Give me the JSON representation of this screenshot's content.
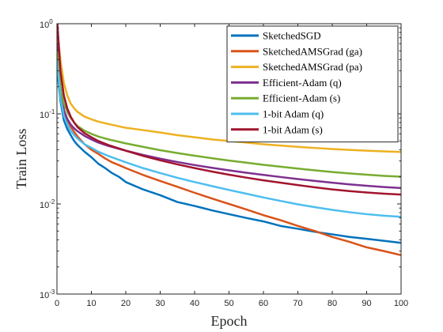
{
  "chart_data": {
    "type": "line",
    "xlabel": "Epoch",
    "ylabel": "Train Loss",
    "xlim": [
      0,
      100
    ],
    "ylim": [
      0.001,
      1
    ],
    "yscale": "log",
    "xticks": [
      0,
      10,
      20,
      30,
      40,
      50,
      60,
      70,
      80,
      90,
      100
    ],
    "yticks": [
      {
        "value": 0.001,
        "base": "10",
        "exp": "-3"
      },
      {
        "value": 0.01,
        "base": "10",
        "exp": "-2"
      },
      {
        "value": 0.1,
        "base": "10",
        "exp": "-1"
      },
      {
        "value": 1,
        "base": "10",
        "exp": "0"
      }
    ],
    "grid": false,
    "legend": "top-right",
    "series": [
      {
        "name": "SketchedSGD",
        "color": "#0072BD",
        "points": [
          [
            0,
            0.33
          ],
          [
            1,
            0.14
          ],
          [
            2,
            0.085
          ],
          [
            3,
            0.068
          ],
          [
            4,
            0.058
          ],
          [
            5,
            0.05
          ],
          [
            6,
            0.045
          ],
          [
            8,
            0.038
          ],
          [
            10,
            0.033
          ],
          [
            12,
            0.028
          ],
          [
            14,
            0.025
          ],
          [
            16,
            0.022
          ],
          [
            18,
            0.02
          ],
          [
            20,
            0.0175
          ],
          [
            25,
            0.0145
          ],
          [
            30,
            0.0125
          ],
          [
            35,
            0.0105
          ],
          [
            40,
            0.0095
          ],
          [
            45,
            0.0085
          ],
          [
            50,
            0.0077
          ],
          [
            55,
            0.007
          ],
          [
            60,
            0.0064
          ],
          [
            65,
            0.0057
          ],
          [
            70,
            0.0053
          ],
          [
            75,
            0.0049
          ],
          [
            80,
            0.0046
          ],
          [
            85,
            0.0043
          ],
          [
            90,
            0.0041
          ],
          [
            95,
            0.0039
          ],
          [
            100,
            0.0037
          ]
        ]
      },
      {
        "name": "SketchedAMSGrad (ga)",
        "color": "#D95319",
        "points": [
          [
            0,
            0.8
          ],
          [
            1,
            0.2
          ],
          [
            2,
            0.11
          ],
          [
            3,
            0.085
          ],
          [
            4,
            0.072
          ],
          [
            5,
            0.063
          ],
          [
            6,
            0.056
          ],
          [
            8,
            0.046
          ],
          [
            10,
            0.04
          ],
          [
            12,
            0.036
          ],
          [
            14,
            0.032
          ],
          [
            16,
            0.029
          ],
          [
            18,
            0.027
          ],
          [
            20,
            0.025
          ],
          [
            25,
            0.021
          ],
          [
            30,
            0.018
          ],
          [
            35,
            0.0155
          ],
          [
            40,
            0.0133
          ],
          [
            45,
            0.0115
          ],
          [
            50,
            0.01
          ],
          [
            55,
            0.0087
          ],
          [
            60,
            0.0075
          ],
          [
            65,
            0.0066
          ],
          [
            70,
            0.0057
          ],
          [
            75,
            0.005
          ],
          [
            80,
            0.0043
          ],
          [
            85,
            0.0038
          ],
          [
            90,
            0.0033
          ],
          [
            95,
            0.003
          ],
          [
            100,
            0.0027
          ]
        ]
      },
      {
        "name": "SketchedAMSGrad (pa)",
        "color": "#EDB120",
        "points": [
          [
            0,
            0.9
          ],
          [
            1,
            0.4
          ],
          [
            2,
            0.22
          ],
          [
            3,
            0.16
          ],
          [
            4,
            0.13
          ],
          [
            5,
            0.115
          ],
          [
            6,
            0.105
          ],
          [
            8,
            0.093
          ],
          [
            10,
            0.087
          ],
          [
            12,
            0.082
          ],
          [
            15,
            0.077
          ],
          [
            20,
            0.07
          ],
          [
            25,
            0.066
          ],
          [
            30,
            0.062
          ],
          [
            35,
            0.058
          ],
          [
            40,
            0.055
          ],
          [
            45,
            0.052
          ],
          [
            50,
            0.05
          ],
          [
            55,
            0.048
          ],
          [
            60,
            0.046
          ],
          [
            65,
            0.0445
          ],
          [
            70,
            0.043
          ],
          [
            75,
            0.0418
          ],
          [
            80,
            0.0407
          ],
          [
            85,
            0.0398
          ],
          [
            90,
            0.039
          ],
          [
            95,
            0.0383
          ],
          [
            100,
            0.0377
          ]
        ]
      },
      {
        "name": "Efficient-Adam (q)",
        "color": "#7E2F8E",
        "points": [
          [
            0,
            0.6
          ],
          [
            1,
            0.18
          ],
          [
            2,
            0.11
          ],
          [
            3,
            0.088
          ],
          [
            4,
            0.076
          ],
          [
            5,
            0.069
          ],
          [
            6,
            0.064
          ],
          [
            8,
            0.057
          ],
          [
            10,
            0.052
          ],
          [
            12,
            0.048
          ],
          [
            15,
            0.044
          ],
          [
            20,
            0.039
          ],
          [
            25,
            0.035
          ],
          [
            30,
            0.0318
          ],
          [
            35,
            0.0292
          ],
          [
            40,
            0.027
          ],
          [
            45,
            0.0252
          ],
          [
            50,
            0.0236
          ],
          [
            55,
            0.0222
          ],
          [
            60,
            0.021
          ],
          [
            65,
            0.0199
          ],
          [
            70,
            0.0189
          ],
          [
            75,
            0.018
          ],
          [
            80,
            0.0172
          ],
          [
            85,
            0.0165
          ],
          [
            90,
            0.0159
          ],
          [
            95,
            0.0154
          ],
          [
            100,
            0.015
          ]
        ]
      },
      {
        "name": "Efficient-Adam (s)",
        "color": "#77AC30",
        "points": [
          [
            0,
            0.5
          ],
          [
            1,
            0.2
          ],
          [
            2,
            0.13
          ],
          [
            3,
            0.105
          ],
          [
            4,
            0.09
          ],
          [
            5,
            0.08
          ],
          [
            6,
            0.073
          ],
          [
            8,
            0.065
          ],
          [
            10,
            0.06
          ],
          [
            12,
            0.056
          ],
          [
            15,
            0.052
          ],
          [
            20,
            0.047
          ],
          [
            25,
            0.043
          ],
          [
            30,
            0.0395
          ],
          [
            35,
            0.0367
          ],
          [
            40,
            0.0343
          ],
          [
            45,
            0.0322
          ],
          [
            50,
            0.0303
          ],
          [
            55,
            0.0287
          ],
          [
            60,
            0.0272
          ],
          [
            65,
            0.0259
          ],
          [
            70,
            0.0247
          ],
          [
            75,
            0.0236
          ],
          [
            80,
            0.0226
          ],
          [
            85,
            0.0218
          ],
          [
            90,
            0.0211
          ],
          [
            95,
            0.0205
          ],
          [
            100,
            0.0201
          ]
        ]
      },
      {
        "name": "1-bit Adam (q)",
        "color": "#4DBEEE",
        "points": [
          [
            0,
            0.4
          ],
          [
            1,
            0.15
          ],
          [
            2,
            0.095
          ],
          [
            3,
            0.076
          ],
          [
            4,
            0.065
          ],
          [
            5,
            0.058
          ],
          [
            6,
            0.053
          ],
          [
            8,
            0.046
          ],
          [
            10,
            0.042
          ],
          [
            12,
            0.038
          ],
          [
            15,
            0.034
          ],
          [
            20,
            0.029
          ],
          [
            25,
            0.025
          ],
          [
            30,
            0.022
          ],
          [
            35,
            0.0195
          ],
          [
            40,
            0.0175
          ],
          [
            45,
            0.0158
          ],
          [
            50,
            0.0143
          ],
          [
            55,
            0.013
          ],
          [
            60,
            0.0118
          ],
          [
            65,
            0.0108
          ],
          [
            70,
            0.0099
          ],
          [
            75,
            0.0092
          ],
          [
            80,
            0.0086
          ],
          [
            85,
            0.0081
          ],
          [
            90,
            0.0077
          ],
          [
            95,
            0.0074
          ],
          [
            100,
            0.0072
          ]
        ]
      },
      {
        "name": "1-bit Adam (s)",
        "color": "#A2142F",
        "points": [
          [
            0,
            1.2
          ],
          [
            1,
            0.3
          ],
          [
            2,
            0.16
          ],
          [
            3,
            0.115
          ],
          [
            4,
            0.093
          ],
          [
            5,
            0.08
          ],
          [
            6,
            0.071
          ],
          [
            8,
            0.061
          ],
          [
            10,
            0.055
          ],
          [
            12,
            0.05
          ],
          [
            15,
            0.045
          ],
          [
            20,
            0.039
          ],
          [
            25,
            0.0342
          ],
          [
            30,
            0.0305
          ],
          [
            35,
            0.0275
          ],
          [
            40,
            0.025
          ],
          [
            45,
            0.0229
          ],
          [
            50,
            0.0211
          ],
          [
            55,
            0.0196
          ],
          [
            60,
            0.0183
          ],
          [
            65,
            0.0172
          ],
          [
            70,
            0.0162
          ],
          [
            75,
            0.0153
          ],
          [
            80,
            0.0145
          ],
          [
            85,
            0.0139
          ],
          [
            90,
            0.0134
          ],
          [
            95,
            0.013
          ],
          [
            100,
            0.0127
          ]
        ]
      }
    ]
  }
}
